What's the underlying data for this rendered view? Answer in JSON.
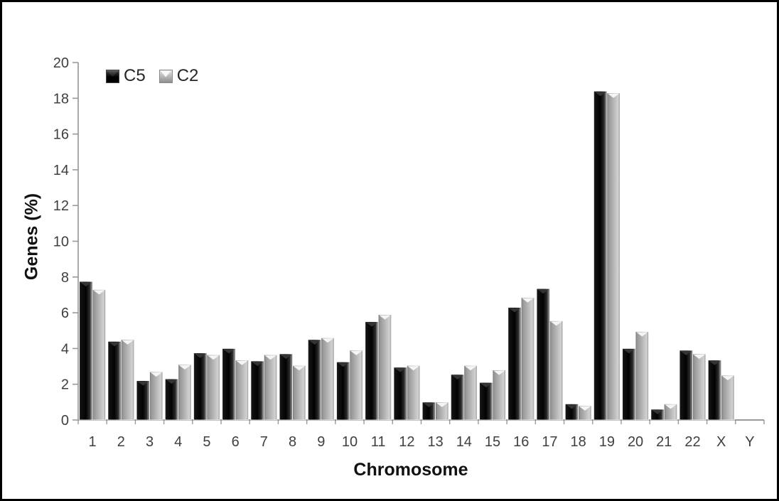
{
  "figure": {
    "background_color": "#ffffff",
    "frame_color": "#000000"
  },
  "chart_data": {
    "type": "bar",
    "title": "",
    "xlabel": "Chromosome",
    "ylabel": "Genes (%)",
    "categories": [
      "1",
      "2",
      "3",
      "4",
      "5",
      "6",
      "7",
      "8",
      "9",
      "10",
      "11",
      "12",
      "13",
      "14",
      "15",
      "16",
      "17",
      "18",
      "19",
      "20",
      "21",
      "22",
      "X",
      "Y"
    ],
    "series": [
      {
        "name": "C5",
        "color": "#0a0a0a",
        "values": [
          7.75,
          4.4,
          2.2,
          2.3,
          3.75,
          4.0,
          3.3,
          3.7,
          4.5,
          3.25,
          5.5,
          2.95,
          1.0,
          2.55,
          2.1,
          6.3,
          7.35,
          0.9,
          18.4,
          4.0,
          0.6,
          3.9,
          3.35,
          0
        ]
      },
      {
        "name": "C2",
        "color": "#b5b5b5",
        "values": [
          7.3,
          4.5,
          2.7,
          3.1,
          3.65,
          3.35,
          3.65,
          3.05,
          4.6,
          3.9,
          5.9,
          3.05,
          1.0,
          3.05,
          2.8,
          6.85,
          5.55,
          0.8,
          18.3,
          4.95,
          0.9,
          3.7,
          2.5,
          0
        ]
      }
    ],
    "ylim": [
      0,
      20
    ],
    "yticks": [
      0,
      2,
      4,
      6,
      8,
      10,
      12,
      14,
      16,
      18,
      20
    ],
    "grid": false,
    "legend_position": "top-left",
    "axis_color": "#9a9a9a",
    "tick_label_color": "#3f3f3f"
  }
}
